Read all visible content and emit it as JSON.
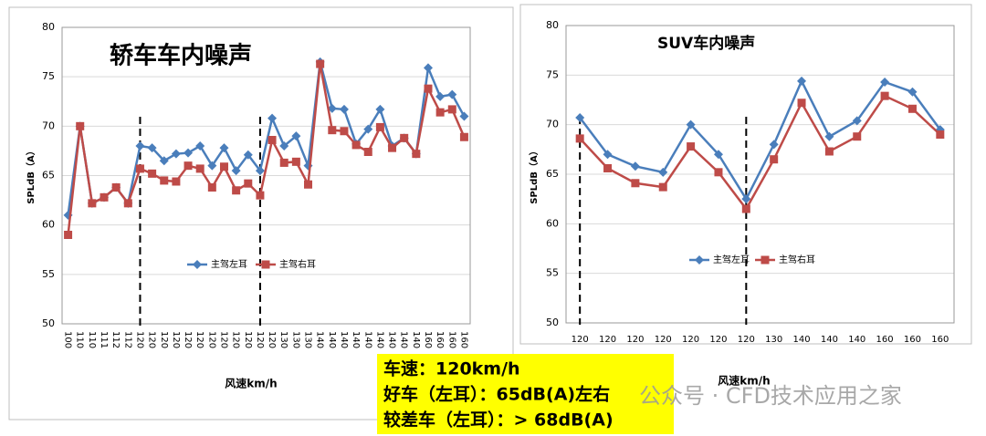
{
  "chart_data": [
    {
      "type": "line",
      "title": "轿车车内噪声",
      "xlabel": "风速km/h",
      "ylabel": "SPLdB（A）",
      "categories": [
        "100",
        "110",
        "110",
        "111",
        "112",
        "112",
        "120",
        "120",
        "120",
        "120",
        "120",
        "120",
        "120",
        "120",
        "120",
        "120",
        "120",
        "120",
        "130",
        "130",
        "130",
        "140",
        "140",
        "140",
        "140",
        "140",
        "140",
        "140",
        "140",
        "140",
        "160",
        "160",
        "160",
        "160"
      ],
      "series": [
        {
          "name": "主驾左耳",
          "color": "#4a7ebb",
          "marker": "diamond",
          "values": [
            61,
            70,
            62.2,
            62.8,
            63.8,
            62.2,
            68,
            67.8,
            66.5,
            67.2,
            67.3,
            68,
            66,
            67.8,
            65.5,
            67.1,
            65.5,
            70.8,
            68,
            69,
            66,
            76.5,
            71.8,
            71.7,
            68.2,
            69.7,
            71.7,
            68,
            68.8,
            67.2,
            75.9,
            73,
            73.2,
            71
          ]
        },
        {
          "name": "主驾右耳",
          "color": "#be4b48",
          "marker": "square",
          "values": [
            59,
            70,
            62.2,
            62.8,
            63.8,
            62.2,
            65.7,
            65.2,
            64.5,
            64.4,
            66,
            65.7,
            63.8,
            65.9,
            63.5,
            64.2,
            63,
            68.6,
            66.3,
            66.4,
            64.1,
            76.3,
            69.6,
            69.5,
            68.1,
            67.4,
            69.9,
            67.8,
            68.8,
            67.2,
            73.8,
            71.4,
            71.7,
            68.9
          ]
        }
      ],
      "ylim": [
        50,
        80
      ],
      "yticks": [
        50,
        55,
        60,
        65,
        70,
        75,
        80
      ]
    },
    {
      "type": "line",
      "title": "SUV车内噪声",
      "xlabel": "风速km/h",
      "ylabel": "SPLdB（A）",
      "categories": [
        "120",
        "120",
        "120",
        "120",
        "120",
        "120",
        "120",
        "130",
        "140",
        "140",
        "140",
        "160",
        "160",
        "160"
      ],
      "series": [
        {
          "name": "主驾左耳",
          "color": "#4a7ebb",
          "marker": "diamond",
          "values": [
            70.7,
            67,
            65.8,
            65.2,
            70,
            67,
            62.5,
            68,
            74.4,
            68.8,
            70.4,
            74.3,
            73.3,
            69.5
          ]
        },
        {
          "name": "主驾右耳",
          "color": "#be4b48",
          "marker": "square",
          "values": [
            68.6,
            65.6,
            64.1,
            63.7,
            67.8,
            65.2,
            61.5,
            66.5,
            72.2,
            67.3,
            68.8,
            72.9,
            71.6,
            69
          ]
        }
      ],
      "ylim": [
        50,
        80
      ],
      "yticks": [
        50,
        55,
        60,
        65,
        70,
        75,
        80
      ]
    }
  ],
  "annotation": {
    "lines": [
      "车速：120km/h",
      "好车（左耳）：65dB(A)左右",
      "较差车（左耳）：> 68dB(A)"
    ]
  },
  "watermark": "公众号 · CFD技术应用之家"
}
